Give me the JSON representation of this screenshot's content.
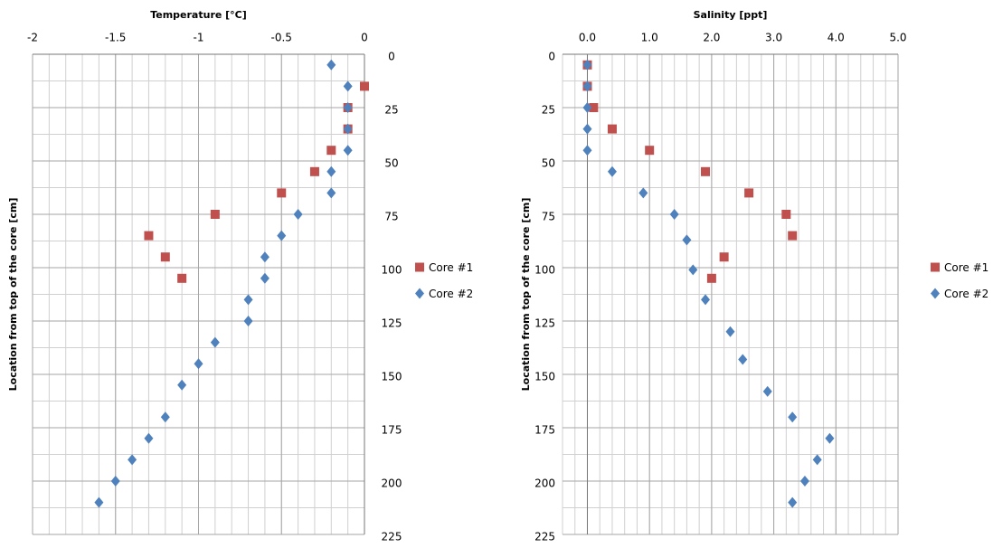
{
  "chart_data": [
    {
      "type": "scatter",
      "title": "Temperature [°C]",
      "y_label": "Location from top of the core [cm]",
      "xlim": [
        -2,
        0
      ],
      "xticks": [
        -2,
        -1.5,
        -1,
        -0.5,
        0
      ],
      "ylim": [
        0,
        225
      ],
      "yticks": [
        0,
        25,
        50,
        75,
        100,
        125,
        150,
        175,
        200,
        225
      ],
      "y_inverted": true,
      "y_axis_position": "right",
      "grid": true,
      "legend": "right",
      "series": [
        {
          "name": "Core #1",
          "color": "#c0504d",
          "marker": "square",
          "x": [
            0,
            -0.1,
            -0.1,
            -0.2,
            -0.3,
            -0.5,
            -0.9,
            -1.3,
            -1.2,
            -1.1
          ],
          "values": [
            15,
            25,
            35,
            45,
            55,
            65,
            75,
            85,
            95,
            105
          ]
        },
        {
          "name": "Core #2",
          "color": "#4f81bd",
          "marker": "diamond",
          "x": [
            -0.2,
            -0.1,
            -0.1,
            -0.1,
            -0.1,
            -0.2,
            -0.2,
            -0.4,
            -0.5,
            -0.6,
            -0.6,
            -0.7,
            -0.7,
            -0.9,
            -1.0,
            -1.1,
            -1.2,
            -1.3,
            -1.4,
            -1.5,
            -1.6
          ],
          "values": [
            5,
            15,
            25,
            35,
            45,
            55,
            65,
            75,
            85,
            95,
            105,
            115,
            125,
            135,
            145,
            155,
            170,
            180,
            190,
            200,
            210
          ]
        }
      ]
    },
    {
      "type": "scatter",
      "title": "Salinity  [ppt]",
      "y_label": "Location from top of the core [cm]",
      "xlim": [
        -0.4,
        5
      ],
      "xticks": [
        {
          "value": 0,
          "label": "0.0"
        },
        {
          "value": 1,
          "label": "1.0"
        },
        {
          "value": 2,
          "label": "2.0"
        },
        {
          "value": 3,
          "label": "3.0"
        },
        {
          "value": 4,
          "label": "4.0"
        },
        {
          "value": 5,
          "label": "5.0"
        }
      ],
      "ylim": [
        0,
        225
      ],
      "yticks": [
        0,
        25,
        50,
        75,
        100,
        125,
        150,
        175,
        200,
        225
      ],
      "y_inverted": true,
      "y_axis_position": "left",
      "grid": true,
      "legend": "right",
      "series": [
        {
          "name": "Core #1",
          "color": "#c0504d",
          "marker": "square",
          "x": [
            0,
            0,
            0.1,
            0.4,
            1.0,
            1.9,
            2.6,
            3.2,
            3.3,
            2.2,
            2.0
          ],
          "values": [
            5,
            15,
            25,
            35,
            45,
            55,
            65,
            75,
            85,
            95,
            105
          ]
        },
        {
          "name": "Core #2",
          "color": "#4f81bd",
          "marker": "diamond",
          "x": [
            0,
            0,
            0,
            0,
            0,
            0.4,
            0.9,
            1.4,
            1.6,
            1.7,
            1.9,
            2.3,
            2.5,
            2.9,
            3.3,
            3.9,
            3.7,
            3.5,
            3.3
          ],
          "values": [
            5,
            15,
            25,
            35,
            45,
            55,
            65,
            75,
            87,
            101,
            115,
            130,
            143,
            158,
            170,
            180,
            190,
            200,
            210
          ]
        }
      ]
    }
  ]
}
